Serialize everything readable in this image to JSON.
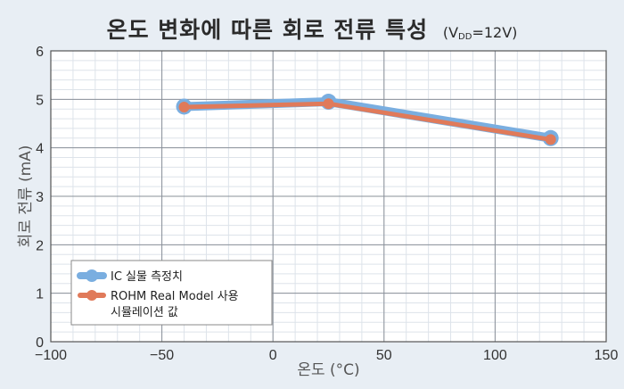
{
  "title": {
    "main": "온도 변화에 따른 회로 전류 특성",
    "cond_prefix": "(V",
    "cond_sub": "DD",
    "cond_suffix": "=12V)"
  },
  "chart_data": {
    "type": "line",
    "xlabel": "온도 (°C)",
    "ylabel": "회로 전류 (mA)",
    "xlim": [
      -100,
      150
    ],
    "ylim": [
      0,
      6
    ],
    "x_ticks": [
      "−100",
      "−50",
      "0",
      "50",
      "100",
      "150"
    ],
    "y_ticks": [
      "0",
      "1",
      "2",
      "3",
      "4",
      "5",
      "6"
    ],
    "grid": true,
    "legend_position": "bottom-left",
    "series": [
      {
        "name": "IC 실물 측정치",
        "color": "#7aaee0",
        "points": [
          [
            -40,
            4.85
          ],
          [
            25,
            4.95
          ],
          [
            125,
            4.2
          ]
        ]
      },
      {
        "name": "ROHM Real Model 사용 시뮬레이션 값",
        "name_line1": "ROHM Real Model 사용",
        "name_line2": "시뮬레이션 값",
        "color": "#e07a5a",
        "points": [
          [
            -40,
            4.84
          ],
          [
            25,
            4.91
          ],
          [
            125,
            4.17
          ]
        ]
      }
    ]
  }
}
